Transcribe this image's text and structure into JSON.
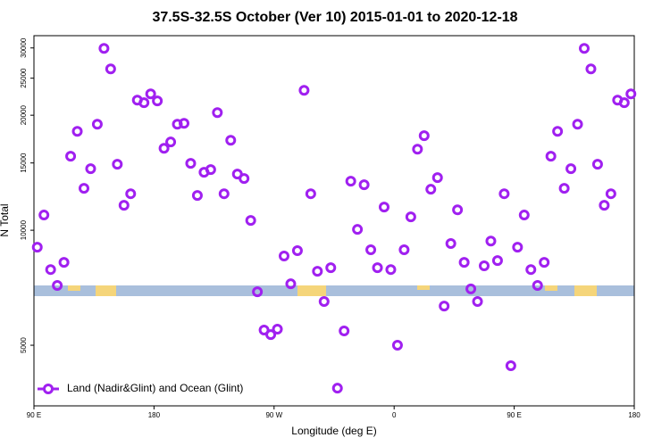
{
  "chart_data": {
    "type": "scatter",
    "title": "37.5S-32.5S October (Ver 10)   2015-01-01 to 2020-12-18",
    "xlabel": "Longitude (deg E)",
    "ylabel": "N Total",
    "log_y": true,
    "legend": "lower left",
    "xlim": [
      90,
      540
    ],
    "xticks": [
      {
        "value": 90,
        "label": "90 E"
      },
      {
        "value": 180,
        "label": "180"
      },
      {
        "value": 270,
        "label": "90 W"
      },
      {
        "value": 360,
        "label": "0"
      },
      {
        "value": 450,
        "label": "90 E"
      },
      {
        "value": 540,
        "label": "180"
      }
    ],
    "ylim": [
      3470,
      32300
    ],
    "yticks": [
      5000,
      10000,
      15000,
      20000,
      25000,
      30000
    ],
    "series": [
      {
        "name": "Land (Nadir&Glint) and Ocean (Glint)",
        "color": "#a020f0",
        "x": [
          92.5,
          97.5,
          102.5,
          107.5,
          112.5,
          117.5,
          122.5,
          127.5,
          132.5,
          137.5,
          142.5,
          147.5,
          152.5,
          157.5,
          162.5,
          167.5,
          172.5,
          177.5,
          182.5,
          187.5,
          192.5,
          197.5,
          202.5,
          207.5,
          212.5,
          217.5,
          222.5,
          227.5,
          232.5,
          237.5,
          242.5,
          247.5,
          252.5,
          257.5,
          262.5,
          267.5,
          272.5,
          277.5,
          282.5,
          287.5,
          292.5,
          297.5,
          302.5,
          307.5,
          312.5,
          317.5,
          322.5,
          327.5,
          332.5,
          337.5,
          342.5,
          347.5,
          352.5,
          357.5,
          362.5,
          367.5,
          372.5,
          377.5,
          382.5,
          387.5,
          392.5,
          397.5,
          402.5,
          407.5,
          412.5,
          417.5,
          422.5,
          427.5,
          432.5,
          437.5,
          442.5,
          447.5,
          452.5,
          457.5,
          462.5,
          467.5,
          472.5,
          477.5,
          482.5,
          487.5,
          492.5,
          497.5,
          502.5,
          507.5,
          512.5,
          517.5,
          522.5,
          527.5,
          532.5,
          537.5
        ],
        "values": [
          9030,
          10960,
          7890,
          7170,
          8240,
          15620,
          18150,
          12870,
          14490,
          18950,
          29920,
          26440,
          14880,
          11620,
          12460,
          21910,
          21570,
          22750,
          21800,
          16390,
          17020,
          18950,
          19050,
          14960,
          12330,
          14180,
          14410,
          20320,
          12460,
          17200,
          14030,
          13660,
          10610,
          6900,
          5480,
          5330,
          5510,
          8560,
          7240,
          8840,
          23240,
          12460,
          7810,
          6510,
          7980,
          3860,
          5450,
          13440,
          10050,
          13150,
          8890,
          7980,
          11500,
          7890,
          5000,
          8890,
          10840,
          16300,
          17680,
          12800,
          13730,
          6330,
          9230,
          11310,
          8240,
          7020,
          6510,
          8070,
          9370,
          8330,
          12460,
          4420,
          9030,
          10960,
          7890,
          7170,
          8240,
          15620,
          18150,
          12870,
          14490,
          18950,
          29920,
          26440,
          14880,
          11620,
          12460,
          21910,
          21570,
          22750
        ]
      }
    ]
  }
}
